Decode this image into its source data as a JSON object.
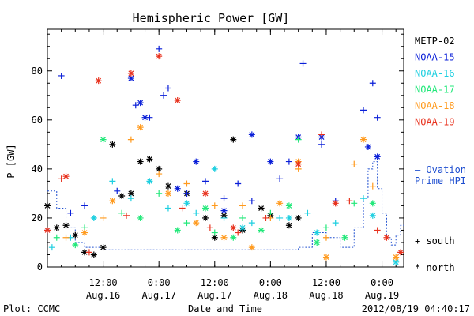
{
  "chart_data": {
    "type": "scatter",
    "title": "Hemispheric Power [GW]",
    "ylabel": "P [GW]",
    "xlabel": "Date and Time",
    "ylim": [
      0,
      97
    ],
    "y_ticks": [
      0,
      20,
      40,
      60,
      80
    ],
    "xlim": [
      "2012-08-16 00:00",
      "2012-08-19 04:40"
    ],
    "x_ticks": [
      {
        "x": "2012-08-16 12:00",
        "time": "12:00",
        "date": "Aug.16"
      },
      {
        "x": "2012-08-17 00:00",
        "time": "0:00",
        "date": "Aug.17"
      },
      {
        "x": "2012-08-17 12:00",
        "time": "12:00",
        "date": "Aug.17"
      },
      {
        "x": "2012-08-18 00:00",
        "time": "0:00",
        "date": "Aug.18"
      },
      {
        "x": "2012-08-18 12:00",
        "time": "12:00",
        "date": "Aug.18"
      },
      {
        "x": "2012-08-19 00:00",
        "time": "0:00",
        "date": "Aug.19"
      }
    ],
    "legend": [
      {
        "name": "METP-02",
        "color": "#000000"
      },
      {
        "name": "NOAA-15",
        "color": "#0a1fd8"
      },
      {
        "name": "NOAA-16",
        "color": "#1ecfe0"
      },
      {
        "name": "NOAA-17",
        "color": "#22e87a"
      },
      {
        "name": "NOAA-18",
        "color": "#ff9a1e"
      },
      {
        "name": "NOAA-19",
        "color": "#e8321e"
      }
    ],
    "ovation_label_1": "— Ovation",
    "ovation_label_2": "Prime HPI",
    "marker_south": "+ south",
    "marker_north": "* north",
    "ovation_color": "#1f4fd0",
    "ovation": [
      [
        "2012-08-16 00:00",
        31
      ],
      [
        "2012-08-16 02:00",
        24
      ],
      [
        "2012-08-16 04:00",
        16
      ],
      [
        "2012-08-16 06:00",
        10
      ],
      [
        "2012-08-16 08:00",
        8
      ],
      [
        "2012-08-16 12:00",
        7
      ],
      [
        "2012-08-16 18:00",
        7
      ],
      [
        "2012-08-17 00:00",
        7
      ],
      [
        "2012-08-17 06:00",
        7
      ],
      [
        "2012-08-17 12:00",
        7
      ],
      [
        "2012-08-17 18:00",
        7
      ],
      [
        "2012-08-18 00:00",
        7
      ],
      [
        "2012-08-18 06:00",
        8
      ],
      [
        "2012-08-18 09:00",
        14
      ],
      [
        "2012-08-18 12:00",
        12
      ],
      [
        "2012-08-18 15:00",
        8
      ],
      [
        "2012-08-18 18:00",
        16
      ],
      [
        "2012-08-18 20:00",
        28
      ],
      [
        "2012-08-18 21:00",
        40
      ],
      [
        "2012-08-18 22:00",
        43
      ],
      [
        "2012-08-18 23:00",
        32
      ],
      [
        "2012-08-19 00:00",
        22
      ],
      [
        "2012-08-19 01:00",
        12
      ],
      [
        "2012-08-19 02:00",
        9
      ],
      [
        "2012-08-19 03:00",
        13
      ],
      [
        "2012-08-19 04:00",
        17
      ],
      [
        "2012-08-19 04:40",
        17
      ]
    ],
    "series": [
      {
        "name": "METP-02",
        "color": "#000000",
        "south": [],
        "north": [
          [
            "2012-08-16 00:00",
            25
          ],
          [
            "2012-08-16 02:00",
            16
          ],
          [
            "2012-08-16 04:00",
            17
          ],
          [
            "2012-08-16 06:00",
            13
          ],
          [
            "2012-08-16 08:00",
            6
          ],
          [
            "2012-08-16 10:00",
            5
          ],
          [
            "2012-08-16 12:00",
            8
          ],
          [
            "2012-08-16 14:00",
            50
          ],
          [
            "2012-08-16 16:00",
            29
          ],
          [
            "2012-08-16 18:00",
            30
          ],
          [
            "2012-08-16 20:00",
            43
          ],
          [
            "2012-08-16 22:00",
            44
          ],
          [
            "2012-08-17 00:00",
            40
          ],
          [
            "2012-08-17 02:00",
            33
          ],
          [
            "2012-08-17 06:00",
            30
          ],
          [
            "2012-08-17 10:00",
            20
          ],
          [
            "2012-08-17 12:00",
            12
          ],
          [
            "2012-08-17 14:00",
            21
          ],
          [
            "2012-08-17 16:00",
            52
          ],
          [
            "2012-08-17 18:00",
            15
          ],
          [
            "2012-08-17 22:00",
            24
          ],
          [
            "2012-08-18 00:00",
            21
          ],
          [
            "2012-08-18 04:00",
            17
          ],
          [
            "2012-08-18 06:00",
            20
          ]
        ]
      },
      {
        "name": "NOAA-15",
        "color": "#0a1fd8",
        "south": [
          [
            "2012-08-16 00:00",
            15
          ],
          [
            "2012-08-16 03:00",
            78
          ],
          [
            "2012-08-16 05:00",
            22
          ],
          [
            "2012-08-16 08:00",
            25
          ],
          [
            "2012-08-16 15:00",
            31
          ],
          [
            "2012-08-16 19:00",
            66
          ],
          [
            "2012-08-16 22:00",
            61
          ],
          [
            "2012-08-17 00:00",
            89
          ],
          [
            "2012-08-17 01:00",
            70
          ],
          [
            "2012-08-17 02:00",
            73
          ],
          [
            "2012-08-17 06:00",
            30
          ],
          [
            "2012-08-17 10:00",
            35
          ],
          [
            "2012-08-17 14:00",
            28
          ],
          [
            "2012-08-17 17:00",
            34
          ],
          [
            "2012-08-17 20:00",
            27
          ],
          [
            "2012-08-18 02:00",
            36
          ],
          [
            "2012-08-18 04:00",
            43
          ],
          [
            "2012-08-18 07:00",
            83
          ],
          [
            "2012-08-18 11:00",
            50
          ],
          [
            "2012-08-18 14:00",
            27
          ],
          [
            "2012-08-18 20:00",
            64
          ],
          [
            "2012-08-18 22:00",
            75
          ],
          [
            "2012-08-18 23:00",
            61
          ]
        ],
        "north": [
          [
            "2012-08-16 18:00",
            77
          ],
          [
            "2012-08-16 20:00",
            67
          ],
          [
            "2012-08-16 21:00",
            61
          ],
          [
            "2012-08-17 04:00",
            32
          ],
          [
            "2012-08-17 08:00",
            43
          ],
          [
            "2012-08-17 14:00",
            23
          ],
          [
            "2012-08-17 20:00",
            54
          ],
          [
            "2012-08-18 00:00",
            43
          ],
          [
            "2012-08-18 06:00",
            53
          ],
          [
            "2012-08-18 11:00",
            53
          ],
          [
            "2012-08-18 21:00",
            49
          ],
          [
            "2012-08-18 23:00",
            45
          ]
        ]
      },
      {
        "name": "NOAA-16",
        "color": "#1ecfe0",
        "south": [
          [
            "2012-08-16 01:00",
            8
          ],
          [
            "2012-08-16 05:00",
            12
          ],
          [
            "2012-08-16 14:00",
            35
          ],
          [
            "2012-08-16 18:00",
            28
          ],
          [
            "2012-08-17 02:00",
            24
          ],
          [
            "2012-08-17 08:00",
            22
          ],
          [
            "2012-08-17 14:00",
            20
          ],
          [
            "2012-08-17 20:00",
            18
          ],
          [
            "2012-08-18 02:00",
            20
          ],
          [
            "2012-08-18 08:00",
            22
          ],
          [
            "2012-08-18 14:00",
            18
          ],
          [
            "2012-08-18 20:00",
            28
          ]
        ],
        "north": [
          [
            "2012-08-16 10:00",
            20
          ],
          [
            "2012-08-16 22:00",
            35
          ],
          [
            "2012-08-17 06:00",
            26
          ],
          [
            "2012-08-17 12:00",
            40
          ],
          [
            "2012-08-17 18:00",
            16
          ],
          [
            "2012-08-18 04:00",
            20
          ],
          [
            "2012-08-18 10:00",
            14
          ],
          [
            "2012-08-18 22:00",
            21
          ],
          [
            "2012-08-19 03:00",
            2
          ]
        ]
      },
      {
        "name": "NOAA-17",
        "color": "#22e87a",
        "south": [
          [
            "2012-08-16 02:00",
            12
          ],
          [
            "2012-08-16 08:00",
            16
          ],
          [
            "2012-08-16 16:00",
            22
          ],
          [
            "2012-08-17 00:00",
            30
          ],
          [
            "2012-08-17 06:00",
            18
          ],
          [
            "2012-08-17 12:00",
            14
          ],
          [
            "2012-08-17 18:00",
            20
          ],
          [
            "2012-08-18 00:00",
            22
          ],
          [
            "2012-08-18 06:00",
            52
          ],
          [
            "2012-08-18 12:00",
            16
          ],
          [
            "2012-08-18 18:00",
            26
          ]
        ],
        "north": [
          [
            "2012-08-16 06:00",
            9
          ],
          [
            "2012-08-16 12:00",
            52
          ],
          [
            "2012-08-16 20:00",
            20
          ],
          [
            "2012-08-17 04:00",
            15
          ],
          [
            "2012-08-17 10:00",
            24
          ],
          [
            "2012-08-17 16:00",
            12
          ],
          [
            "2012-08-17 22:00",
            15
          ],
          [
            "2012-08-18 04:00",
            25
          ],
          [
            "2012-08-18 10:00",
            10
          ],
          [
            "2012-08-18 16:00",
            12
          ],
          [
            "2012-08-18 22:00",
            26
          ]
        ]
      },
      {
        "name": "NOAA-18",
        "color": "#ff9a1e",
        "south": [
          [
            "2012-08-16 04:00",
            12
          ],
          [
            "2012-08-16 12:00",
            20
          ],
          [
            "2012-08-16 18:00",
            52
          ],
          [
            "2012-08-17 00:00",
            38
          ],
          [
            "2012-08-17 06:00",
            34
          ],
          [
            "2012-08-17 12:00",
            25
          ],
          [
            "2012-08-17 18:00",
            25
          ],
          [
            "2012-08-18 00:00",
            20
          ],
          [
            "2012-08-18 06:00",
            40
          ],
          [
            "2012-08-18 12:00",
            12
          ],
          [
            "2012-08-18 18:00",
            42
          ],
          [
            "2012-08-18 22:00",
            33
          ]
        ],
        "north": [
          [
            "2012-08-16 08:00",
            14
          ],
          [
            "2012-08-16 14:00",
            27
          ],
          [
            "2012-08-16 20:00",
            57
          ],
          [
            "2012-08-17 02:00",
            30
          ],
          [
            "2012-08-17 08:00",
            18
          ],
          [
            "2012-08-17 14:00",
            12
          ],
          [
            "2012-08-17 20:00",
            8
          ],
          [
            "2012-08-18 02:00",
            26
          ],
          [
            "2012-08-18 06:00",
            43
          ],
          [
            "2012-08-18 12:00",
            4
          ],
          [
            "2012-08-18 20:00",
            52
          ],
          [
            "2012-08-19 03:00",
            4
          ]
        ]
      },
      {
        "name": "NOAA-19",
        "color": "#e8321e",
        "south": [
          [
            "2012-08-16 03:00",
            36
          ],
          [
            "2012-08-16 09:00",
            6
          ],
          [
            "2012-08-16 17:00",
            21
          ],
          [
            "2012-08-17 05:00",
            24
          ],
          [
            "2012-08-17 11:00",
            16
          ],
          [
            "2012-08-17 17:00",
            14
          ],
          [
            "2012-08-17 23:00",
            20
          ],
          [
            "2012-08-18 11:00",
            54
          ],
          [
            "2012-08-18 17:00",
            27
          ],
          [
            "2012-08-18 23:00",
            15
          ]
        ],
        "north": [
          [
            "2012-08-16 00:00",
            15
          ],
          [
            "2012-08-16 04:00",
            37
          ],
          [
            "2012-08-16 11:00",
            76
          ],
          [
            "2012-08-16 18:00",
            79
          ],
          [
            "2012-08-17 00:00",
            86
          ],
          [
            "2012-08-17 04:00",
            68
          ],
          [
            "2012-08-17 10:00",
            30
          ],
          [
            "2012-08-17 16:00",
            16
          ],
          [
            "2012-08-18 06:00",
            42
          ],
          [
            "2012-08-18 14:00",
            26
          ],
          [
            "2012-08-19 01:00",
            12
          ],
          [
            "2012-08-19 04:00",
            6
          ]
        ]
      }
    ]
  },
  "footer": {
    "plot_label": "Plot: CCMC",
    "timestamp": "2012/08/19 04:40:17"
  }
}
